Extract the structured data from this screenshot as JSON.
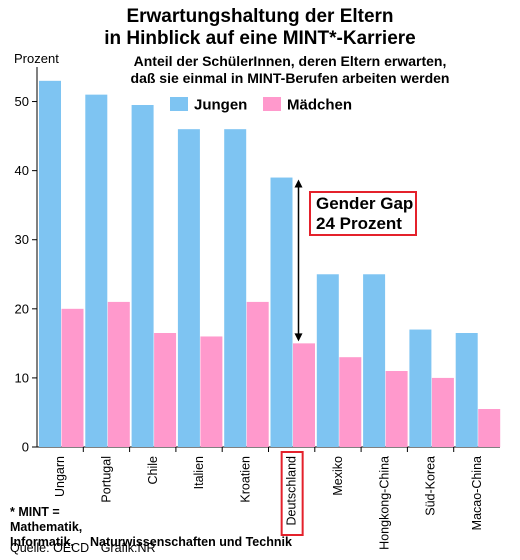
{
  "chart_data": {
    "type": "bar",
    "title_line1": "Erwartungshaltung der Eltern",
    "title_line2": "in Hinblick auf eine MINT*-Karriere",
    "subtitle_line1": "Anteil der SchülerInnen, deren Eltern erwarten,",
    "subtitle_line2": "daß sie einmal in MINT-Berufen arbeiten werden",
    "ylabel": "Prozent",
    "ylim": [
      0,
      55
    ],
    "yticks": [
      0,
      10,
      20,
      30,
      40,
      50
    ],
    "grid": false,
    "legend_position": "top",
    "categories": [
      "Ungarn",
      "Portugal",
      "Chile",
      "Italien",
      "Kroatien",
      "Deutschland",
      "Mexiko",
      "Hongkong-China",
      "Süd-Korea",
      "Macao-China"
    ],
    "highlight_category": "Deutschland",
    "series": [
      {
        "name": "Jungen",
        "color": "#7ec4f2",
        "values": [
          53,
          51,
          49.5,
          46,
          46,
          39,
          25,
          25,
          17,
          16.5
        ]
      },
      {
        "name": "Mädchen",
        "color": "#ff99cc",
        "values": [
          20,
          21,
          16.5,
          16,
          21,
          15,
          13,
          11,
          10,
          5.5
        ]
      }
    ],
    "annotation": {
      "line1": "Gender Gap",
      "line2": "24 Prozent",
      "category": "Deutschland",
      "from": 15,
      "to": 39,
      "color": "#e4212b"
    }
  },
  "footnote": {
    "line1": "* MINT = Mathematik, Informatik,",
    "line2": "Naturwissenschaften und Technik"
  },
  "source": {
    "quelle": "Quelle: OECD",
    "grafik": "Grafik:NR"
  }
}
